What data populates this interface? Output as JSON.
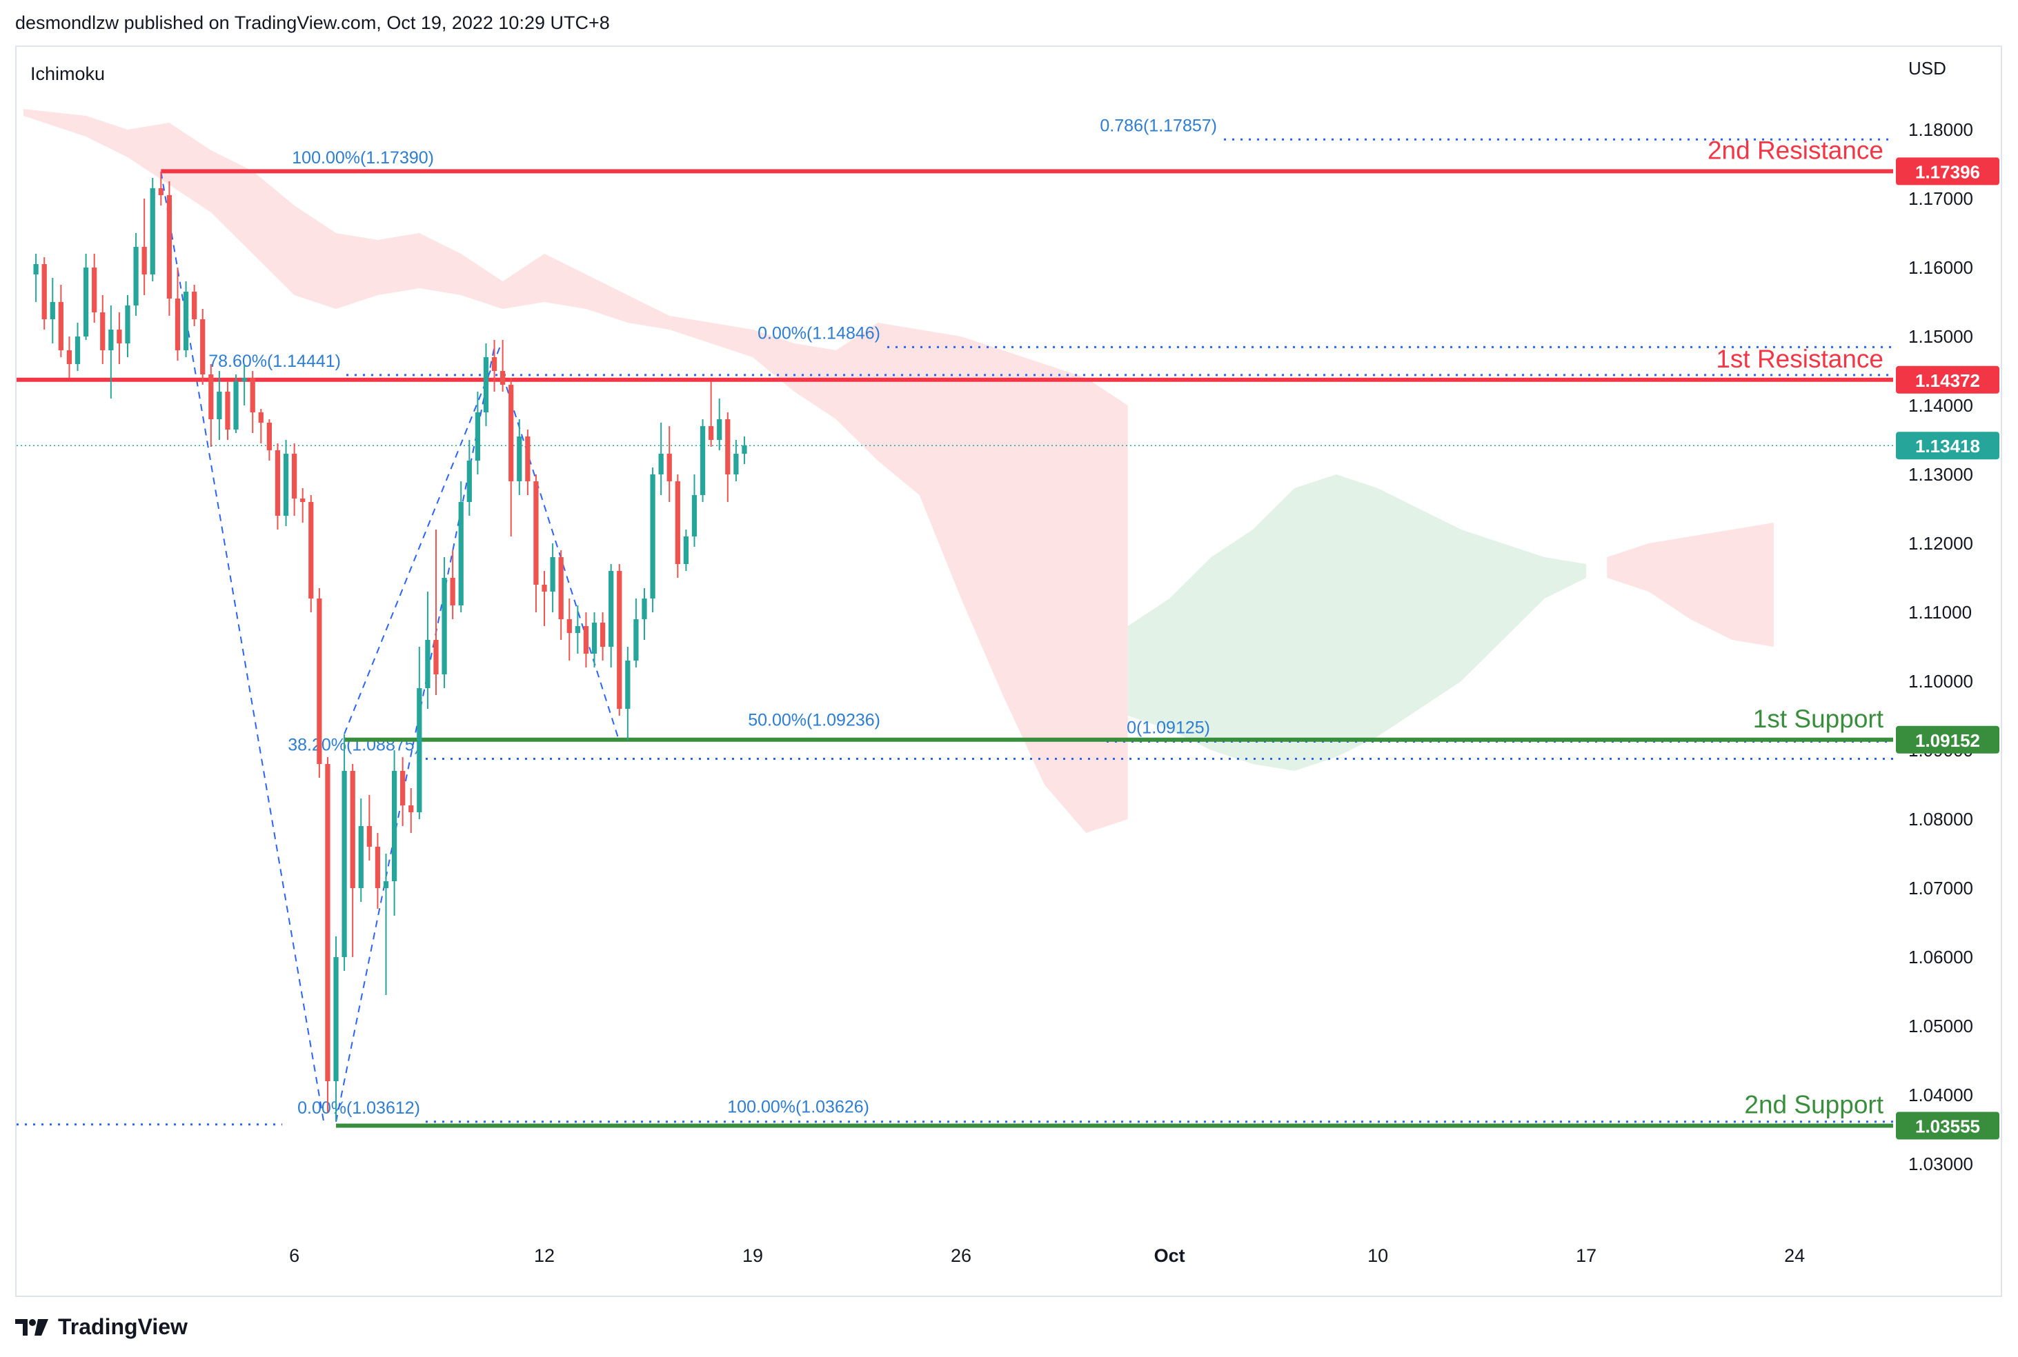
{
  "header": {
    "published_line": "desmondlzw published on TradingView.com, Oct 19, 2022 10:29 UTC+8"
  },
  "footer": {
    "brand": "TradingView",
    "logo_icon": "tradingview-logo-icon"
  },
  "colors": {
    "up": "#26a69a",
    "down": "#ef5350",
    "resistance": "#f23645",
    "support": "#388e3c",
    "fib": "#2962ff",
    "fib_text": "#2d7dd2",
    "cloud_bear": "#fde3e3",
    "cloud_bull": "#e3f2e6",
    "axis_text": "#131722",
    "grid_border": "#e0e3eb"
  },
  "chart_data": {
    "type": "candlestick",
    "title": "",
    "indicator": "Ichimoku",
    "currency": "USD",
    "x_axis": {
      "ticks": [
        {
          "label": "6",
          "bar": 6
        },
        {
          "label": "12",
          "bar": 12
        },
        {
          "label": "19",
          "bar": 17
        },
        {
          "label": "26",
          "bar": 22
        },
        {
          "label": "Oct",
          "bar": 27
        },
        {
          "label": "10",
          "bar": 32
        },
        {
          "label": "17",
          "bar": 37
        },
        {
          "label": "24",
          "bar": 42
        }
      ],
      "xlim_bars": [
        -0.5,
        44.2
      ]
    },
    "y_axis": {
      "ylim": [
        1.022,
        1.188
      ],
      "ticks": [
        "1.18000",
        "1.17000",
        "1.16000",
        "1.15000",
        "1.14000",
        "1.13000",
        "1.12000",
        "1.11000",
        "1.10000",
        "1.09000",
        "1.08000",
        "1.07000",
        "1.06000",
        "1.05000",
        "1.04000",
        "1.03000"
      ]
    },
    "candles": [
      {
        "o": 1.159,
        "h": 1.162,
        "l": 1.155,
        "c": 1.1605
      },
      {
        "o": 1.1605,
        "h": 1.1615,
        "l": 1.151,
        "c": 1.1525
      },
      {
        "o": 1.1525,
        "h": 1.1585,
        "l": 1.149,
        "c": 1.155
      },
      {
        "o": 1.155,
        "h": 1.1575,
        "l": 1.147,
        "c": 1.148
      },
      {
        "o": 1.148,
        "h": 1.15,
        "l": 1.144,
        "c": 1.146
      },
      {
        "o": 1.146,
        "h": 1.152,
        "l": 1.145,
        "c": 1.15
      },
      {
        "o": 1.15,
        "h": 1.162,
        "l": 1.1495,
        "c": 1.16
      },
      {
        "o": 1.16,
        "h": 1.162,
        "l": 1.152,
        "c": 1.1535
      },
      {
        "o": 1.1535,
        "h": 1.156,
        "l": 1.146,
        "c": 1.148
      },
      {
        "o": 1.148,
        "h": 1.1545,
        "l": 1.141,
        "c": 1.151
      },
      {
        "o": 1.151,
        "h": 1.1535,
        "l": 1.146,
        "c": 1.149
      },
      {
        "o": 1.149,
        "h": 1.156,
        "l": 1.147,
        "c": 1.1545
      },
      {
        "o": 1.1545,
        "h": 1.165,
        "l": 1.153,
        "c": 1.163
      },
      {
        "o": 1.163,
        "h": 1.17,
        "l": 1.156,
        "c": 1.159
      },
      {
        "o": 1.159,
        "h": 1.173,
        "l": 1.158,
        "c": 1.1715
      },
      {
        "o": 1.1715,
        "h": 1.1739,
        "l": 1.169,
        "c": 1.1705
      },
      {
        "o": 1.1705,
        "h": 1.1725,
        "l": 1.153,
        "c": 1.1555
      },
      {
        "o": 1.1555,
        "h": 1.16,
        "l": 1.1465,
        "c": 1.148
      },
      {
        "o": 1.148,
        "h": 1.158,
        "l": 1.147,
        "c": 1.1565
      },
      {
        "o": 1.1565,
        "h": 1.1575,
        "l": 1.1515,
        "c": 1.1525
      },
      {
        "o": 1.1525,
        "h": 1.154,
        "l": 1.143,
        "c": 1.1445
      },
      {
        "o": 1.1445,
        "h": 1.146,
        "l": 1.134,
        "c": 1.138
      },
      {
        "o": 1.138,
        "h": 1.145,
        "l": 1.135,
        "c": 1.142
      },
      {
        "o": 1.142,
        "h": 1.1435,
        "l": 1.135,
        "c": 1.1365
      },
      {
        "o": 1.1365,
        "h": 1.1445,
        "l": 1.136,
        "c": 1.1435
      },
      {
        "o": 1.1435,
        "h": 1.146,
        "l": 1.14,
        "c": 1.144
      },
      {
        "o": 1.144,
        "h": 1.145,
        "l": 1.136,
        "c": 1.139
      },
      {
        "o": 1.139,
        "h": 1.1395,
        "l": 1.1345,
        "c": 1.1375
      },
      {
        "o": 1.1375,
        "h": 1.138,
        "l": 1.132,
        "c": 1.1335
      },
      {
        "o": 1.1335,
        "h": 1.1345,
        "l": 1.122,
        "c": 1.124
      },
      {
        "o": 1.124,
        "h": 1.135,
        "l": 1.1225,
        "c": 1.133
      },
      {
        "o": 1.133,
        "h": 1.1345,
        "l": 1.124,
        "c": 1.1265
      },
      {
        "o": 1.1265,
        "h": 1.128,
        "l": 1.123,
        "c": 1.126
      },
      {
        "o": 1.126,
        "h": 1.127,
        "l": 1.11,
        "c": 1.112
      },
      {
        "o": 1.112,
        "h": 1.1135,
        "l": 1.086,
        "c": 1.088
      },
      {
        "o": 1.088,
        "h": 1.089,
        "l": 1.0375,
        "c": 1.042
      },
      {
        "o": 1.042,
        "h": 1.063,
        "l": 1.0363,
        "c": 1.06
      },
      {
        "o": 1.06,
        "h": 1.0923,
        "l": 1.058,
        "c": 1.087
      },
      {
        "o": 1.087,
        "h": 1.088,
        "l": 1.06,
        "c": 1.07
      },
      {
        "o": 1.07,
        "h": 1.083,
        "l": 1.068,
        "c": 1.079
      },
      {
        "o": 1.079,
        "h": 1.0835,
        "l": 1.074,
        "c": 1.076
      },
      {
        "o": 1.076,
        "h": 1.078,
        "l": 1.067,
        "c": 1.07
      },
      {
        "o": 1.07,
        "h": 1.075,
        "l": 1.0545,
        "c": 1.071
      },
      {
        "o": 1.071,
        "h": 1.09,
        "l": 1.066,
        "c": 1.087
      },
      {
        "o": 1.087,
        "h": 1.089,
        "l": 1.079,
        "c": 1.082
      },
      {
        "o": 1.082,
        "h": 1.0845,
        "l": 1.078,
        "c": 1.081
      },
      {
        "o": 1.081,
        "h": 1.105,
        "l": 1.08,
        "c": 1.099
      },
      {
        "o": 1.099,
        "h": 1.113,
        "l": 1.096,
        "c": 1.106
      },
      {
        "o": 1.106,
        "h": 1.122,
        "l": 1.098,
        "c": 1.101
      },
      {
        "o": 1.101,
        "h": 1.118,
        "l": 1.099,
        "c": 1.115
      },
      {
        "o": 1.115,
        "h": 1.119,
        "l": 1.109,
        "c": 1.111
      },
      {
        "o": 1.111,
        "h": 1.129,
        "l": 1.11,
        "c": 1.126
      },
      {
        "o": 1.126,
        "h": 1.135,
        "l": 1.124,
        "c": 1.132
      },
      {
        "o": 1.132,
        "h": 1.142,
        "l": 1.13,
        "c": 1.139
      },
      {
        "o": 1.139,
        "h": 1.149,
        "l": 1.137,
        "c": 1.147
      },
      {
        "o": 1.147,
        "h": 1.1495,
        "l": 1.142,
        "c": 1.145
      },
      {
        "o": 1.145,
        "h": 1.1495,
        "l": 1.142,
        "c": 1.143
      },
      {
        "o": 1.143,
        "h": 1.144,
        "l": 1.121,
        "c": 1.129
      },
      {
        "o": 1.129,
        "h": 1.138,
        "l": 1.127,
        "c": 1.1355
      },
      {
        "o": 1.1355,
        "h": 1.1365,
        "l": 1.127,
        "c": 1.129
      },
      {
        "o": 1.129,
        "h": 1.13,
        "l": 1.11,
        "c": 1.114
      },
      {
        "o": 1.114,
        "h": 1.116,
        "l": 1.108,
        "c": 1.113
      },
      {
        "o": 1.113,
        "h": 1.12,
        "l": 1.11,
        "c": 1.118
      },
      {
        "o": 1.118,
        "h": 1.119,
        "l": 1.106,
        "c": 1.109
      },
      {
        "o": 1.109,
        "h": 1.112,
        "l": 1.103,
        "c": 1.107
      },
      {
        "o": 1.107,
        "h": 1.111,
        "l": 1.104,
        "c": 1.108
      },
      {
        "o": 1.108,
        "h": 1.11,
        "l": 1.102,
        "c": 1.104
      },
      {
        "o": 1.104,
        "h": 1.11,
        "l": 1.102,
        "c": 1.1085
      },
      {
        "o": 1.1085,
        "h": 1.11,
        "l": 1.103,
        "c": 1.105
      },
      {
        "o": 1.105,
        "h": 1.117,
        "l": 1.102,
        "c": 1.116
      },
      {
        "o": 1.116,
        "h": 1.117,
        "l": 1.095,
        "c": 1.096
      },
      {
        "o": 1.096,
        "h": 1.105,
        "l": 1.0915,
        "c": 1.103
      },
      {
        "o": 1.103,
        "h": 1.112,
        "l": 1.102,
        "c": 1.109
      },
      {
        "o": 1.109,
        "h": 1.1135,
        "l": 1.106,
        "c": 1.112
      },
      {
        "o": 1.112,
        "h": 1.131,
        "l": 1.11,
        "c": 1.13
      },
      {
        "o": 1.13,
        "h": 1.1375,
        "l": 1.127,
        "c": 1.133
      },
      {
        "o": 1.133,
        "h": 1.137,
        "l": 1.126,
        "c": 1.129
      },
      {
        "o": 1.129,
        "h": 1.13,
        "l": 1.115,
        "c": 1.117
      },
      {
        "o": 1.117,
        "h": 1.122,
        "l": 1.116,
        "c": 1.121
      },
      {
        "o": 1.121,
        "h": 1.13,
        "l": 1.1195,
        "c": 1.127
      },
      {
        "o": 1.127,
        "h": 1.138,
        "l": 1.126,
        "c": 1.137
      },
      {
        "o": 1.137,
        "h": 1.1435,
        "l": 1.134,
        "c": 1.135
      },
      {
        "o": 1.135,
        "h": 1.141,
        "l": 1.1335,
        "c": 1.138
      },
      {
        "o": 1.138,
        "h": 1.139,
        "l": 1.126,
        "c": 1.13
      },
      {
        "o": 1.13,
        "h": 1.135,
        "l": 1.129,
        "c": 1.133
      },
      {
        "o": 1.133,
        "h": 1.1355,
        "l": 1.1315,
        "c": 1.1342
      }
    ],
    "horizontal_levels": [
      {
        "label": "2nd Resistance",
        "value": 1.17396,
        "tag": "1.17396",
        "color": "resistance"
      },
      {
        "label": "1st Resistance",
        "value": 1.14372,
        "tag": "1.14372",
        "color": "resistance"
      },
      {
        "label": "1st Support",
        "value": 1.09152,
        "tag": "1.09152",
        "color": "support"
      },
      {
        "label": "2nd Support",
        "value": 1.03555,
        "tag": "1.03555",
        "color": "support"
      }
    ],
    "current_price": {
      "value": 1.13418,
      "tag": "1.13418"
    },
    "fib_levels": [
      {
        "text": "0.786(1.17857)",
        "value": 1.17857
      },
      {
        "text": "100.00%(1.17390)",
        "value": 1.1739
      },
      {
        "text": "0.00%(1.14846)",
        "value": 1.14846
      },
      {
        "text": "78.60%(1.14441)",
        "value": 1.14441
      },
      {
        "text": "50.00%(1.09236)",
        "value": 1.09236
      },
      {
        "text": "0(1.09125)",
        "value": 1.09125
      },
      {
        "text": "38.20%(1.08875)",
        "value": 1.08875
      },
      {
        "text": "100.00%(1.03626)",
        "value": 1.03626
      },
      {
        "text": "0.00%(1.03612)",
        "value": 1.03612
      }
    ],
    "ichimoku_cloud": {
      "bear_upper": [
        [
          -0.5,
          1.183
        ],
        [
          1,
          1.182
        ],
        [
          2,
          1.18
        ],
        [
          3,
          1.181
        ],
        [
          4,
          1.177
        ],
        [
          5,
          1.174
        ],
        [
          6,
          1.169
        ],
        [
          7,
          1.165
        ],
        [
          8,
          1.164
        ],
        [
          9,
          1.165
        ],
        [
          10,
          1.162
        ],
        [
          11,
          1.158
        ],
        [
          12,
          1.162
        ],
        [
          13,
          1.159
        ],
        [
          14,
          1.156
        ],
        [
          15,
          1.153
        ],
        [
          16,
          1.152
        ],
        [
          17,
          1.151
        ],
        [
          18,
          1.149
        ],
        [
          19,
          1.148
        ],
        [
          20,
          1.152
        ],
        [
          21,
          1.151
        ],
        [
          22,
          1.15
        ],
        [
          23,
          1.148
        ],
        [
          24,
          1.146
        ],
        [
          25,
          1.144
        ],
        [
          26,
          1.14
        ]
      ],
      "bear_lower": [
        [
          -0.5,
          1.182
        ],
        [
          1,
          1.179
        ],
        [
          2,
          1.176
        ],
        [
          3,
          1.172
        ],
        [
          4,
          1.168
        ],
        [
          5,
          1.162
        ],
        [
          6,
          1.156
        ],
        [
          7,
          1.154
        ],
        [
          8,
          1.156
        ],
        [
          9,
          1.157
        ],
        [
          10,
          1.156
        ],
        [
          11,
          1.154
        ],
        [
          12,
          1.155
        ],
        [
          13,
          1.154
        ],
        [
          14,
          1.152
        ],
        [
          15,
          1.151
        ],
        [
          16,
          1.149
        ],
        [
          17,
          1.147
        ],
        [
          18,
          1.142
        ],
        [
          19,
          1.138
        ],
        [
          20,
          1.132
        ],
        [
          21,
          1.127
        ],
        [
          22,
          1.112
        ],
        [
          23,
          1.098
        ],
        [
          24,
          1.085
        ],
        [
          25,
          1.078
        ],
        [
          26,
          1.08
        ]
      ],
      "bull_upper": [
        [
          26,
          1.108
        ],
        [
          27,
          1.112
        ],
        [
          28,
          1.118
        ],
        [
          29,
          1.122
        ],
        [
          30,
          1.128
        ],
        [
          31,
          1.13
        ],
        [
          32,
          1.128
        ],
        [
          33,
          1.125
        ],
        [
          34,
          1.122
        ],
        [
          35,
          1.12
        ],
        [
          36,
          1.118
        ],
        [
          37,
          1.117
        ]
      ],
      "bull_lower": [
        [
          26,
          1.095
        ],
        [
          27,
          1.093
        ],
        [
          28,
          1.09
        ],
        [
          29,
          1.088
        ],
        [
          30,
          1.087
        ],
        [
          31,
          1.089
        ],
        [
          32,
          1.092
        ],
        [
          33,
          1.096
        ],
        [
          34,
          1.1
        ],
        [
          35,
          1.106
        ],
        [
          36,
          1.112
        ],
        [
          37,
          1.115
        ]
      ],
      "bear2_upper": [
        [
          37.5,
          1.118
        ],
        [
          38.5,
          1.12
        ],
        [
          39.5,
          1.121
        ],
        [
          40.5,
          1.122
        ],
        [
          41.5,
          1.123
        ]
      ],
      "bear2_lower": [
        [
          37.5,
          1.115
        ],
        [
          38.5,
          1.113
        ],
        [
          39.5,
          1.109
        ],
        [
          40.5,
          1.106
        ],
        [
          41.5,
          1.105
        ]
      ]
    }
  }
}
